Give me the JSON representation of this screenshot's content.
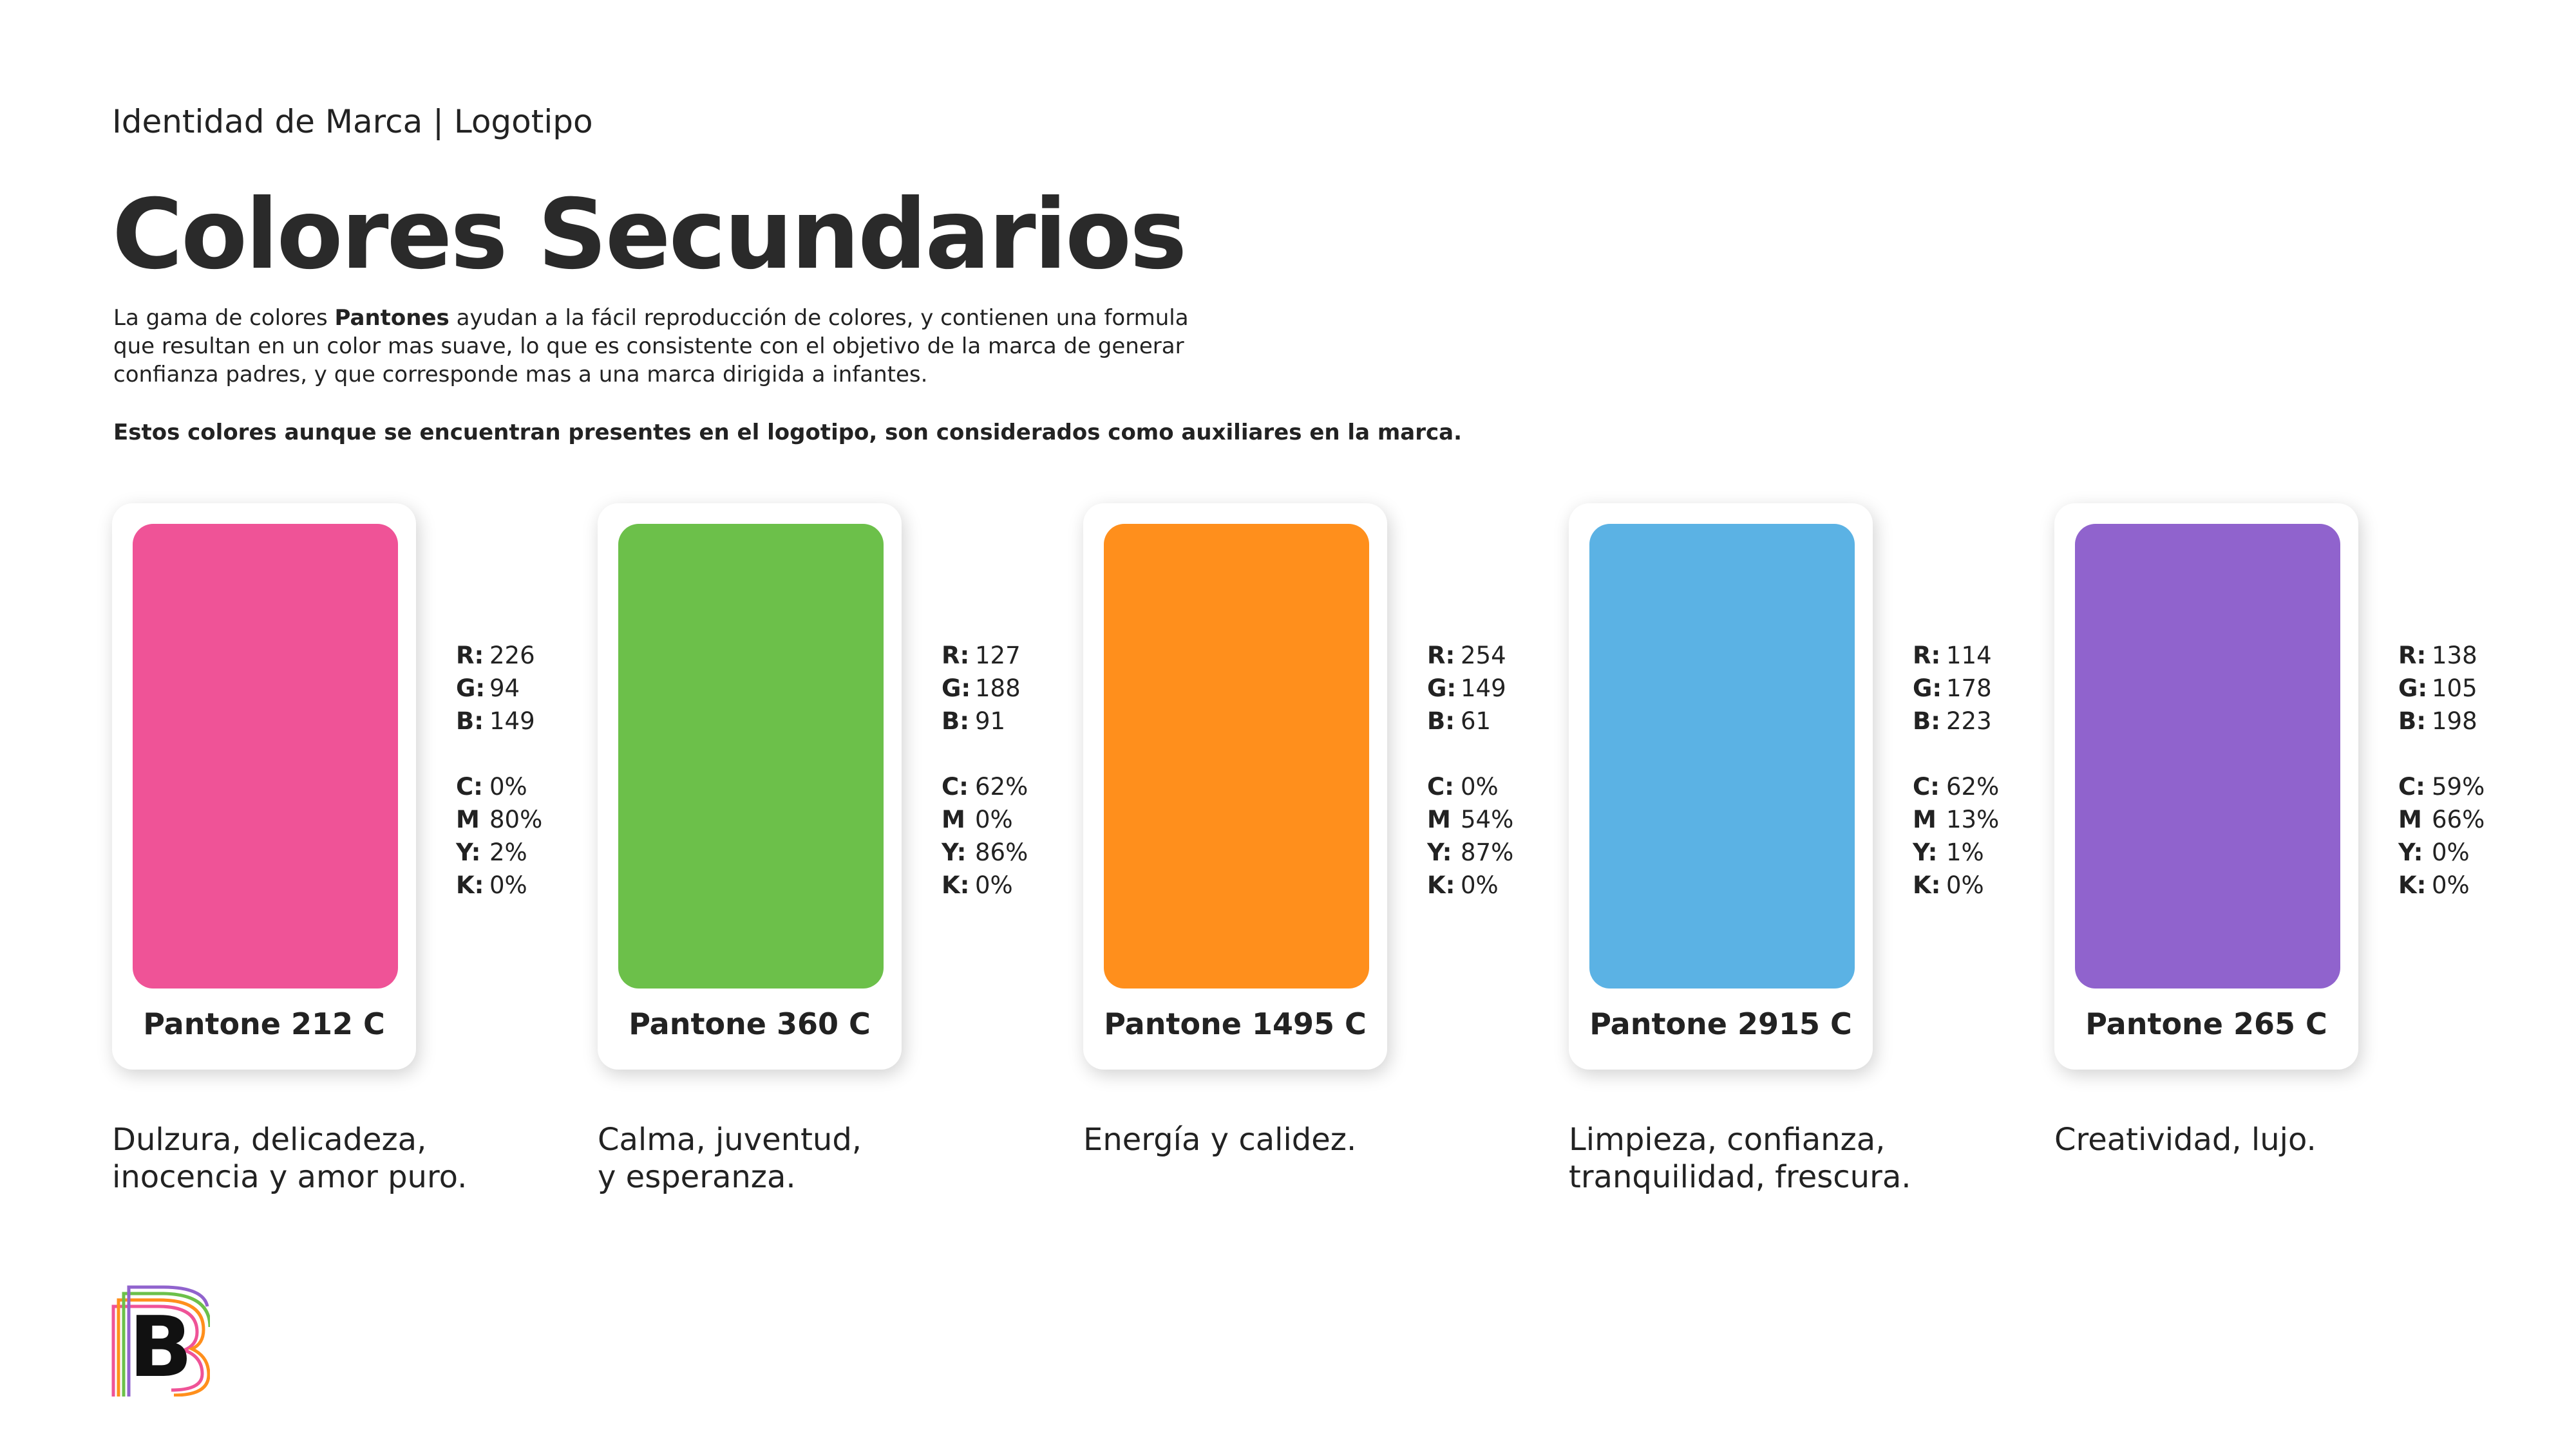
{
  "header": {
    "breadcrumb": "Identidad de Marca | Logotipo",
    "title": "Colores Secundarios"
  },
  "intro": {
    "part1": "La gama de colores ",
    "bold": "Pantones",
    "part2": " ayudan a la fácil reproducción de colores, y contienen una formula",
    "line2": "que resultan en un color mas suave, lo que es consistente con el objetivo de la marca de generar",
    "line3": "confianza padres, y que corresponde mas a una marca dirigida a infantes."
  },
  "note": "Estos colores aunque se encuentran presentes en el logotipo, son considerados como auxiliares en la marca.",
  "labels": {
    "r": "R:",
    "g": "G:",
    "b": "B:",
    "c": "C:",
    "m": "M",
    "y": "Y:",
    "k": "K:"
  },
  "colors": [
    {
      "pantone": "Pantone 212 C",
      "hex": "#EF5397",
      "r": "226",
      "g": "94",
      "b": "149",
      "c": "0%",
      "m": "80%",
      "y": "2%",
      "k": "0%",
      "desc_line1": "Dulzura, delicadeza,",
      "desc_line2": "inocencia y amor puro."
    },
    {
      "pantone": "Pantone 360 C",
      "hex": "#6CC04A",
      "r": "127",
      "g": "188",
      "b": "91",
      "c": "62%",
      "m": "0%",
      "y": "86%",
      "k": "0%",
      "desc_line1": "Calma, juventud,",
      "desc_line2": "y esperanza."
    },
    {
      "pantone": "Pantone 1495 C",
      "hex": "#FF8F1C",
      "r": "254",
      "g": "149",
      "b": "61",
      "c": "0%",
      "m": "54%",
      "y": "87%",
      "k": "0%",
      "desc_line1": "Energía y calidez.",
      "desc_line2": ""
    },
    {
      "pantone": "Pantone 2915 C",
      "hex": "#5BB2E4",
      "r": "114",
      "g": "178",
      "b": "223",
      "c": "62%",
      "m": "13%",
      "y": "1%",
      "k": "0%",
      "desc_line1": "Limpieza, confianza,",
      "desc_line2": "tranquilidad, frescura."
    },
    {
      "pantone": "Pantone 265 C",
      "hex": "#9063CD",
      "r": "138",
      "g": "105",
      "b": "198",
      "c": "59%",
      "m": "66%",
      "y": "0%",
      "k": "0%",
      "desc_line1": "Creatividad, lujo.",
      "desc_line2": ""
    }
  ],
  "logo": {
    "letter": "B",
    "stripe_colors": [
      "#EF5397",
      "#FF8F1C",
      "#6CC04A",
      "#9063CD"
    ]
  }
}
